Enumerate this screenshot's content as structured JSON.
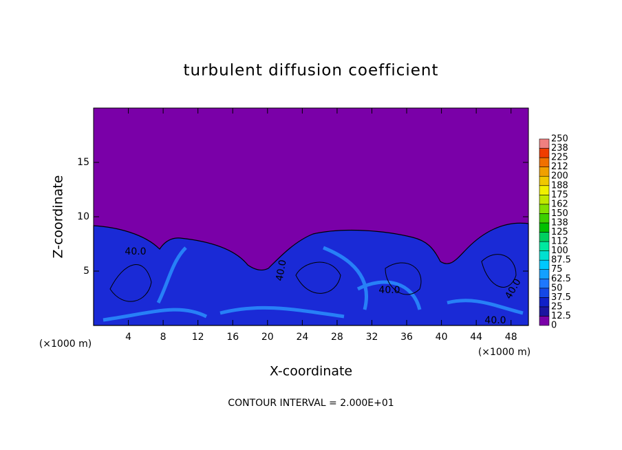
{
  "chart_data": {
    "type": "contour",
    "title": "turbulent diffusion coefficient",
    "x_label": "X-coordinate",
    "y_label": "Z-coordinate",
    "x_unit_left": "(×1000 m)",
    "x_unit_right": "(×1000 m)",
    "footer": "CONTOUR INTERVAL = 2.000E+01",
    "xlim": [
      0,
      50
    ],
    "ylim": [
      0,
      20
    ],
    "xticks": [
      4,
      8,
      12,
      16,
      20,
      24,
      28,
      32,
      36,
      40,
      44,
      48
    ],
    "yticks": [
      5,
      10,
      15
    ],
    "contour_labels": [
      "40.0",
      "40.0",
      "40.0",
      "40.0",
      "40.0"
    ],
    "levels": [
      0,
      12.5,
      25,
      37.5,
      50,
      62.5,
      75,
      87.5,
      100,
      {
        "value": 112.5,
        "label": "112"
      },
      125,
      {
        "value": 137.5,
        "label": "138"
      },
      150,
      {
        "value": 162.5,
        "label": "162"
      },
      175,
      {
        "value": 187.5,
        "label": "188"
      },
      200,
      {
        "value": 212.5,
        "label": "212"
      },
      225,
      {
        "value": 237.5,
        "label": "238"
      },
      250
    ],
    "colors": [
      "#7a00a8",
      "#1c14a0",
      "#1020c8",
      "#1448e6",
      "#1e78ff",
      "#14a0ff",
      "#00c8ff",
      "#00e0d0",
      "#00e8a0",
      "#00d060",
      "#00c000",
      "#3cd000",
      "#80e000",
      "#c0e800",
      "#f0f000",
      "#f0c800",
      "#f0a000",
      "#f07000",
      "#f03c00",
      "#f08080"
    ]
  }
}
